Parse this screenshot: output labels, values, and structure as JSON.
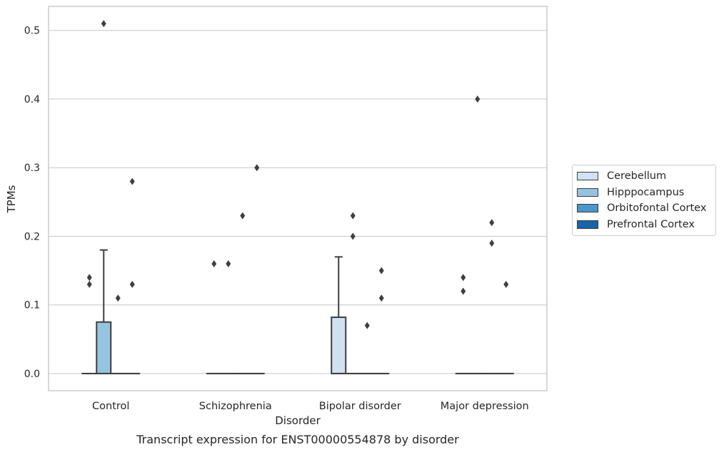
{
  "chart_data": {
    "type": "box",
    "title": "Transcript expression for ENST00000554878 by disorder",
    "xlabel": "Disorder",
    "ylabel": "TPMs",
    "ylim": [
      -0.025,
      0.535
    ],
    "yticks": [
      0.0,
      0.1,
      0.2,
      0.3,
      0.4,
      0.5
    ],
    "ytick_labels": [
      "0.0",
      "0.1",
      "0.2",
      "0.3",
      "0.4",
      "0.5"
    ],
    "grid": true,
    "legend_placement": "right",
    "categories": [
      "Control",
      "Schizophrenia",
      "Bipolar disorder",
      "Major depression"
    ],
    "series": [
      {
        "name": "Cerebellum",
        "color": "#d0e1f2",
        "boxes": [
          {
            "q1": 0,
            "median": 0,
            "q3": 0,
            "whisker_low": 0,
            "whisker_high": 0,
            "outliers": [
              0.14,
              0.13
            ]
          },
          {
            "q1": 0,
            "median": 0,
            "q3": 0,
            "whisker_low": 0,
            "whisker_high": 0,
            "outliers": [
              0.16
            ]
          },
          {
            "q1": 0,
            "median": 0,
            "q3": 0.082,
            "whisker_low": 0,
            "whisker_high": 0.17,
            "outliers": []
          },
          {
            "q1": 0,
            "median": 0,
            "q3": 0,
            "whisker_low": 0,
            "whisker_high": 0,
            "outliers": [
              0.14,
              0.12
            ]
          }
        ]
      },
      {
        "name": "Hipppocampus",
        "color": "#94c4df",
        "boxes": [
          {
            "q1": 0,
            "median": 0,
            "q3": 0.075,
            "whisker_low": 0,
            "whisker_high": 0.18,
            "outliers": [
              0.51
            ]
          },
          {
            "q1": 0,
            "median": 0,
            "q3": 0,
            "whisker_low": 0,
            "whisker_high": 0,
            "outliers": [
              0.16
            ]
          },
          {
            "q1": 0,
            "median": 0,
            "q3": 0,
            "whisker_low": 0,
            "whisker_high": 0,
            "outliers": [
              0.23,
              0.2
            ]
          },
          {
            "q1": 0,
            "median": 0,
            "q3": 0,
            "whisker_low": 0,
            "whisker_high": 0,
            "outliers": [
              0.4
            ]
          }
        ]
      },
      {
        "name": "Orbitofontal Cortex",
        "color": "#4a98c9",
        "boxes": [
          {
            "q1": 0,
            "median": 0,
            "q3": 0,
            "whisker_low": 0,
            "whisker_high": 0,
            "outliers": [
              0.11
            ]
          },
          {
            "q1": 0,
            "median": 0,
            "q3": 0,
            "whisker_low": 0,
            "whisker_high": 0,
            "outliers": [
              0.23
            ]
          },
          {
            "q1": 0,
            "median": 0,
            "q3": 0,
            "whisker_low": 0,
            "whisker_high": 0,
            "outliers": [
              0.07
            ]
          },
          {
            "q1": 0,
            "median": 0,
            "q3": 0,
            "whisker_low": 0,
            "whisker_high": 0,
            "outliers": [
              0.22,
              0.19
            ]
          }
        ]
      },
      {
        "name": "Prefrontal Cortex",
        "color": "#1764ab",
        "boxes": [
          {
            "q1": 0,
            "median": 0,
            "q3": 0,
            "whisker_low": 0,
            "whisker_high": 0,
            "outliers": [
              0.28,
              0.13
            ]
          },
          {
            "q1": 0,
            "median": 0,
            "q3": 0,
            "whisker_low": 0,
            "whisker_high": 0,
            "outliers": [
              0.3
            ]
          },
          {
            "q1": 0,
            "median": 0,
            "q3": 0,
            "whisker_low": 0,
            "whisker_high": 0,
            "outliers": [
              0.15,
              0.11
            ]
          },
          {
            "q1": 0,
            "median": 0,
            "q3": 0,
            "whisker_low": 0,
            "whisker_high": 0,
            "outliers": [
              0.13
            ]
          }
        ]
      }
    ]
  }
}
